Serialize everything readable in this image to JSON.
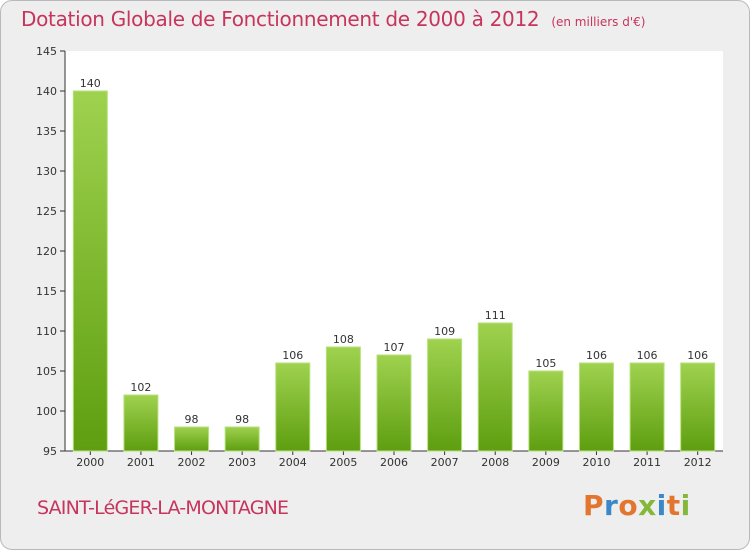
{
  "header": {
    "title": "Dotation Globale de Fonctionnement de 2000 à 2012",
    "subtitle": "(en milliers d'€)"
  },
  "footer": {
    "place_name": "SAINT-LéGER-LA-MONTAGNE",
    "logo_text": "Proxiti"
  },
  "colors": {
    "bar_light": "#9fd24f",
    "bar_dark": "#5e9e10",
    "title": "#c7345c",
    "logo_letters": [
      "#e3762f",
      "#3a88c8",
      "#e3762f",
      "#84b83a",
      "#3a88c8",
      "#e3762f",
      "#84b83a"
    ]
  },
  "chart_data": {
    "type": "bar",
    "title": "Dotation Globale de Fonctionnement de 2000 à 2012",
    "categories": [
      "2000",
      "2001",
      "2002",
      "2003",
      "2004",
      "2005",
      "2006",
      "2007",
      "2008",
      "2009",
      "2010",
      "2011",
      "2012"
    ],
    "values": [
      140,
      102,
      98,
      98,
      106,
      108,
      107,
      109,
      111,
      105,
      106,
      106,
      106
    ],
    "data_labels": [
      "140",
      "102",
      "98",
      "98",
      "106",
      "108",
      "107",
      "109",
      "111",
      "105",
      "106",
      "106",
      "106"
    ],
    "xlabel": "",
    "ylabel": "",
    "ylim": [
      95,
      145
    ],
    "yticks": [
      95,
      100,
      105,
      110,
      115,
      120,
      125,
      130,
      135,
      140,
      145
    ],
    "grid": false
  }
}
